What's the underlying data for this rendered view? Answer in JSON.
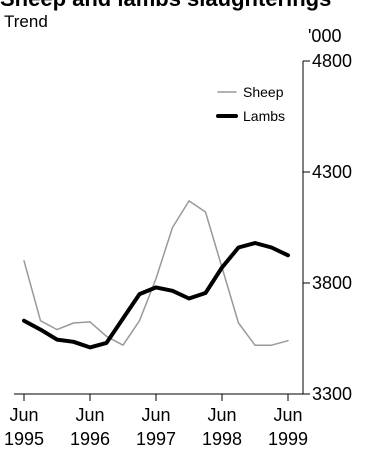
{
  "chart_data": {
    "type": "line",
    "title": "Sheep and lambs slaughterings",
    "subtitle": "Trend",
    "y_unit_label": "'000",
    "ylim": [
      3300,
      4800
    ],
    "y_ticks": [
      3300,
      3800,
      4300,
      4800
    ],
    "x": [
      "Jun 1995",
      "Sep 1995",
      "Dec 1995",
      "Mar 1996",
      "Jun 1996",
      "Sep 1996",
      "Dec 1996",
      "Mar 1997",
      "Jun 1997",
      "Sep 1997",
      "Dec 1997",
      "Mar 1998",
      "Jun 1998",
      "Sep 1998",
      "Dec 1998",
      "Mar 1999",
      "Jun 1999"
    ],
    "x_ticks": [
      {
        "month": "Jun",
        "year": "1995",
        "index": 0
      },
      {
        "month": "Jun",
        "year": "1996",
        "index": 4
      },
      {
        "month": "Jun",
        "year": "1997",
        "index": 8
      },
      {
        "month": "Jun",
        "year": "1998",
        "index": 12
      },
      {
        "month": "Jun",
        "year": "1999",
        "index": 16
      }
    ],
    "series": [
      {
        "name": "Sheep",
        "color": "#999999",
        "values": [
          3900,
          3630,
          3590,
          3620,
          3625,
          3560,
          3520,
          3630,
          3820,
          4050,
          4170,
          4120,
          3870,
          3620,
          3520,
          3520,
          3540
        ]
      },
      {
        "name": "Lambs",
        "color": "#000000",
        "values": [
          3630,
          3590,
          3545,
          3535,
          3510,
          3530,
          3640,
          3750,
          3780,
          3765,
          3730,
          3755,
          3870,
          3960,
          3980,
          3960,
          3925
        ]
      }
    ],
    "legend_placement": "top-right",
    "grid": false
  }
}
